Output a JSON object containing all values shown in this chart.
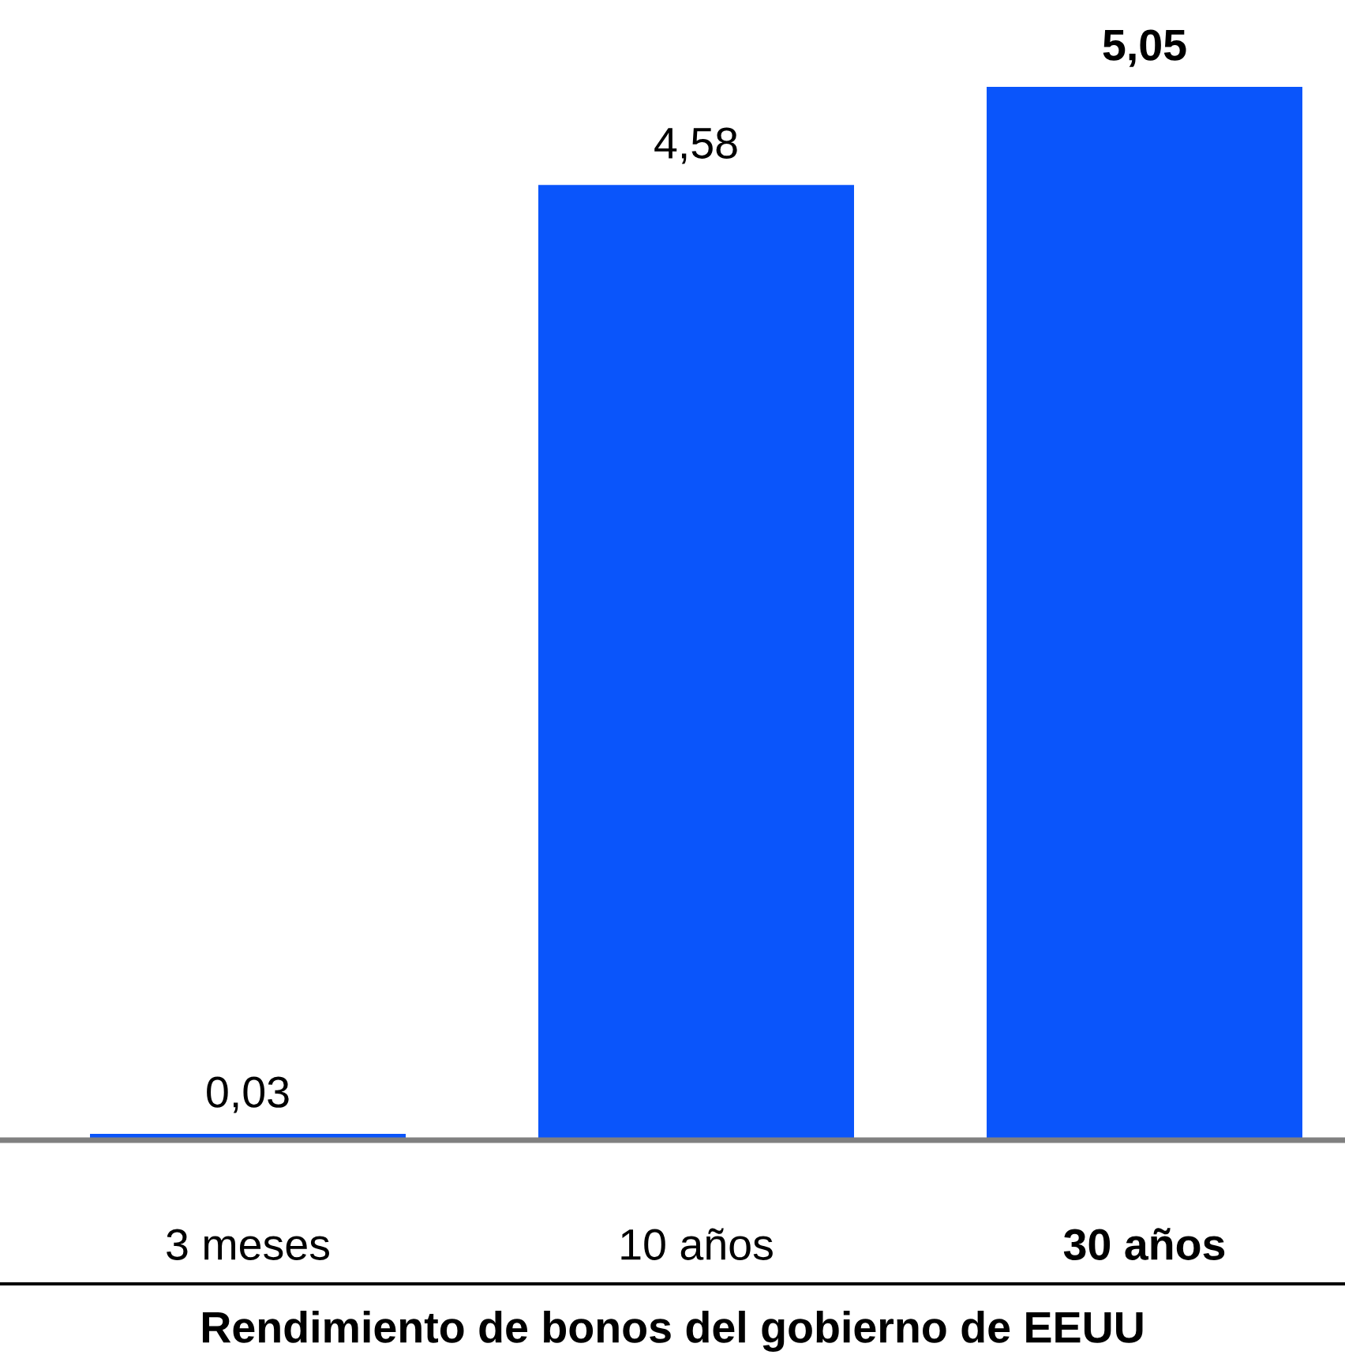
{
  "chart_data": {
    "type": "bar",
    "xlabel": "Rendimiento de bonos del gobierno de EEUU",
    "categories": [
      "3 meses",
      "10 años",
      "30 años"
    ],
    "values": [
      0.03,
      4.58,
      5.05
    ],
    "value_labels": [
      "0,03",
      "4,58",
      "5,05"
    ],
    "color": "#0a55fb",
    "grid": false,
    "legend": false
  }
}
